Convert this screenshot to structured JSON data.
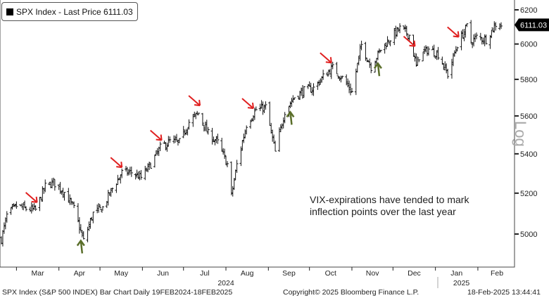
{
  "legend": {
    "label": "SPX Index - Last Price 6111.03"
  },
  "last_price_tag": "6111.03",
  "annotation": {
    "line1": "VIX-expirations have tended to mark",
    "line2": "inflection points over the last year"
  },
  "y_scale_label": "Log",
  "footer": {
    "left": "SPX Index (S&P 500 INDEX) Bar Chart  Daily 19FEB2024-18FEB2025",
    "center": "Copyright© 2025 Bloomberg Finance L.P.",
    "right": "18-Feb-2025 13:44:41"
  },
  "colors": {
    "bars": "#111111",
    "red_arrow": "#e02020",
    "green_arrow": "#5a6e2a"
  },
  "chart_data": {
    "type": "bar",
    "subtype": "ohlc",
    "title": "SPX Index - Last Price 6111.03",
    "scale": "log",
    "ylim": [
      4880,
      6260
    ],
    "yticks": [
      5000,
      5200,
      5400,
      5600,
      5800,
      6000,
      6200
    ],
    "xlim": [
      "2024-02-19",
      "2025-02-18"
    ],
    "months": [
      {
        "label": "Mar",
        "start": "2024-03-01"
      },
      {
        "label": "Apr",
        "start": "2024-04-01"
      },
      {
        "label": "May",
        "start": "2024-05-01"
      },
      {
        "label": "Jun",
        "start": "2024-06-01"
      },
      {
        "label": "Jul",
        "start": "2024-07-01"
      },
      {
        "label": "Aug",
        "start": "2024-08-01"
      },
      {
        "label": "Sep",
        "start": "2024-09-01"
      },
      {
        "label": "Oct",
        "start": "2024-10-01"
      },
      {
        "label": "Nov",
        "start": "2024-11-01"
      },
      {
        "label": "Dec",
        "start": "2024-12-01"
      },
      {
        "label": "Jan",
        "start": "2025-01-01"
      },
      {
        "label": "Feb",
        "start": "2025-02-01"
      }
    ],
    "years": [
      {
        "label": "2024",
        "at": "2024-08-01"
      },
      {
        "label": "2025",
        "at": "2025-01-20"
      }
    ],
    "weekly_closes": [
      [
        "2024-02-19",
        4975
      ],
      [
        "2024-02-23",
        5089
      ],
      [
        "2024-03-01",
        5137
      ],
      [
        "2024-03-08",
        5123
      ],
      [
        "2024-03-15",
        5117
      ],
      [
        "2024-03-22",
        5234
      ],
      [
        "2024-03-28",
        5254
      ],
      [
        "2024-04-05",
        5204
      ],
      [
        "2024-04-12",
        5123
      ],
      [
        "2024-04-19",
        4967
      ],
      [
        "2024-04-26",
        5100
      ],
      [
        "2024-05-03",
        5128
      ],
      [
        "2024-05-10",
        5223
      ],
      [
        "2024-05-17",
        5303
      ],
      [
        "2024-05-24",
        5305
      ],
      [
        "2024-05-31",
        5278
      ],
      [
        "2024-06-07",
        5347
      ],
      [
        "2024-06-14",
        5431
      ],
      [
        "2024-06-21",
        5465
      ],
      [
        "2024-06-28",
        5460
      ],
      [
        "2024-07-05",
        5567
      ],
      [
        "2024-07-12",
        5615
      ],
      [
        "2024-07-19",
        5505
      ],
      [
        "2024-07-26",
        5459
      ],
      [
        "2024-08-02",
        5346
      ],
      [
        "2024-08-05",
        5186
      ],
      [
        "2024-08-09",
        5344
      ],
      [
        "2024-08-16",
        5554
      ],
      [
        "2024-08-23",
        5634
      ],
      [
        "2024-08-30",
        5648
      ],
      [
        "2024-09-06",
        5408
      ],
      [
        "2024-09-13",
        5626
      ],
      [
        "2024-09-20",
        5703
      ],
      [
        "2024-09-27",
        5738
      ],
      [
        "2024-10-04",
        5751
      ],
      [
        "2024-10-11",
        5815
      ],
      [
        "2024-10-18",
        5864
      ],
      [
        "2024-10-25",
        5808
      ],
      [
        "2024-11-01",
        5729
      ],
      [
        "2024-11-08",
        5995
      ],
      [
        "2024-11-15",
        5870
      ],
      [
        "2024-11-22",
        5969
      ],
      [
        "2024-11-29",
        6032
      ],
      [
        "2024-12-06",
        6090
      ],
      [
        "2024-12-13",
        6051
      ],
      [
        "2024-12-18",
        5872
      ],
      [
        "2024-12-20",
        5930
      ],
      [
        "2024-12-27",
        5970
      ],
      [
        "2025-01-03",
        5942
      ],
      [
        "2025-01-10",
        5827
      ],
      [
        "2025-01-17",
        5997
      ],
      [
        "2025-01-24",
        6101
      ],
      [
        "2025-01-27",
        6012
      ],
      [
        "2025-01-31",
        6040
      ],
      [
        "2025-02-07",
        6026
      ],
      [
        "2025-02-14",
        6115
      ],
      [
        "2025-02-18",
        6111.03
      ]
    ],
    "arrows": [
      {
        "date": "2024-03-15",
        "type": "red-down"
      },
      {
        "date": "2024-05-16",
        "type": "red-down"
      },
      {
        "date": "2024-06-14",
        "type": "red-down"
      },
      {
        "date": "2024-07-12",
        "type": "red-down"
      },
      {
        "date": "2024-08-20",
        "type": "red-down"
      },
      {
        "date": "2024-10-16",
        "type": "red-down"
      },
      {
        "date": "2024-12-16",
        "type": "red-down"
      },
      {
        "date": "2025-01-17",
        "type": "red-down"
      },
      {
        "date": "2024-04-17",
        "type": "green-up"
      },
      {
        "date": "2024-09-17",
        "type": "green-up"
      },
      {
        "date": "2024-11-20",
        "type": "green-up"
      }
    ]
  }
}
